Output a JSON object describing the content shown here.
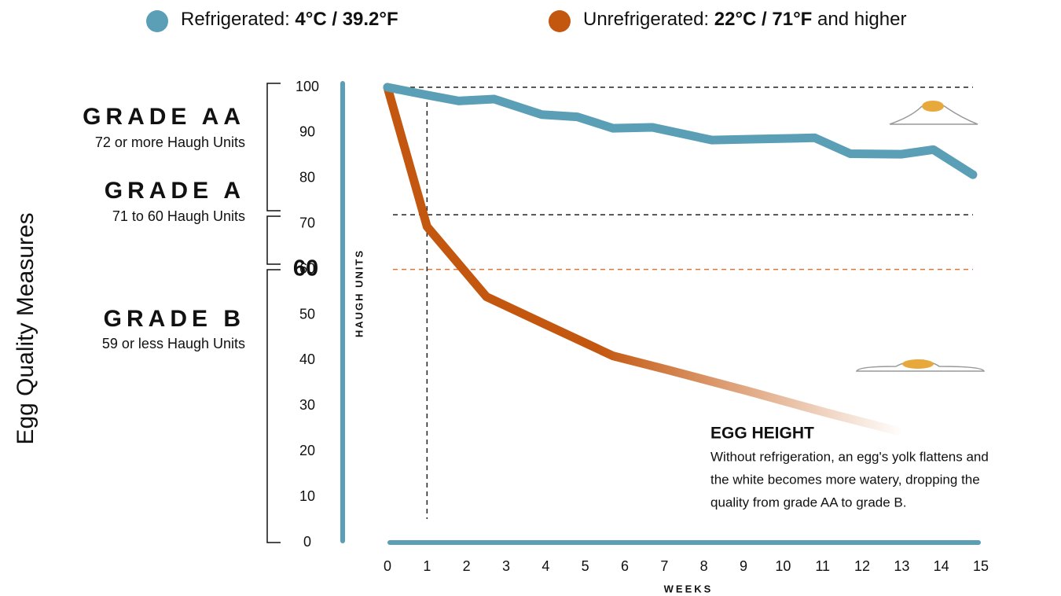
{
  "chart_data": {
    "type": "line",
    "y_axis_label": "Egg Quality Measures",
    "inner_axis_label": "HAUGH UNITS",
    "x_axis_label": "WEEKS",
    "ylim": [
      0,
      100
    ],
    "yticks": [
      0,
      10,
      20,
      30,
      40,
      50,
      60,
      70,
      80,
      90,
      100
    ],
    "xlim": [
      0,
      15
    ],
    "xticks": [
      0,
      1,
      2,
      3,
      4,
      5,
      6,
      7,
      8,
      9,
      10,
      11,
      12,
      13,
      14,
      15
    ],
    "series": [
      {
        "name": "Refrigerated: 4°C / 39.2°F",
        "bold": "4°C / 39.2°F",
        "color": "#5a9fb5",
        "x": [
          0,
          1,
          1.8,
          2.7,
          3.9,
          4.8,
          5.7,
          6.7,
          8.2,
          9.2,
          10.8,
          11.7,
          13,
          13.8,
          14.8
        ],
        "values": [
          100,
          98.3,
          97,
          97.4,
          94,
          93.5,
          91,
          91.2,
          88.4,
          88.6,
          88.9,
          85.4,
          85.3,
          86.3,
          80.8
        ]
      },
      {
        "name": "Unrefrigerated: 22°C / 71°F and higher",
        "bold": "22°C / 71°F",
        "color": "#c4570f",
        "x": [
          0,
          1,
          2.5,
          3.9,
          5.7,
          7.1,
          9.1,
          11.1,
          12.9
        ],
        "values": [
          100,
          69.4,
          54,
          48.3,
          41,
          37.9,
          33.3,
          28.5,
          24.5
        ]
      }
    ],
    "reference_lines": [
      {
        "value": 100,
        "color": "#222"
      },
      {
        "value": 72,
        "color": "#222"
      },
      {
        "value": 60,
        "color": "#d9783a"
      }
    ],
    "x_reference_line": 1,
    "grades": [
      {
        "title": "GRADE AA",
        "subtitle": "72 or more Haugh Units"
      },
      {
        "title": "GRADE A",
        "subtitle": "71 to 60 Haugh Units"
      },
      {
        "title": "GRADE B",
        "subtitle": "59 or less Haugh Units"
      }
    ],
    "annotation": {
      "title": "EGG HEIGHT",
      "lines": [
        "Without refrigeration, an egg's yolk flattens and",
        "the white becomes more watery, dropping the",
        "quality from grade AA to grade B."
      ]
    }
  }
}
